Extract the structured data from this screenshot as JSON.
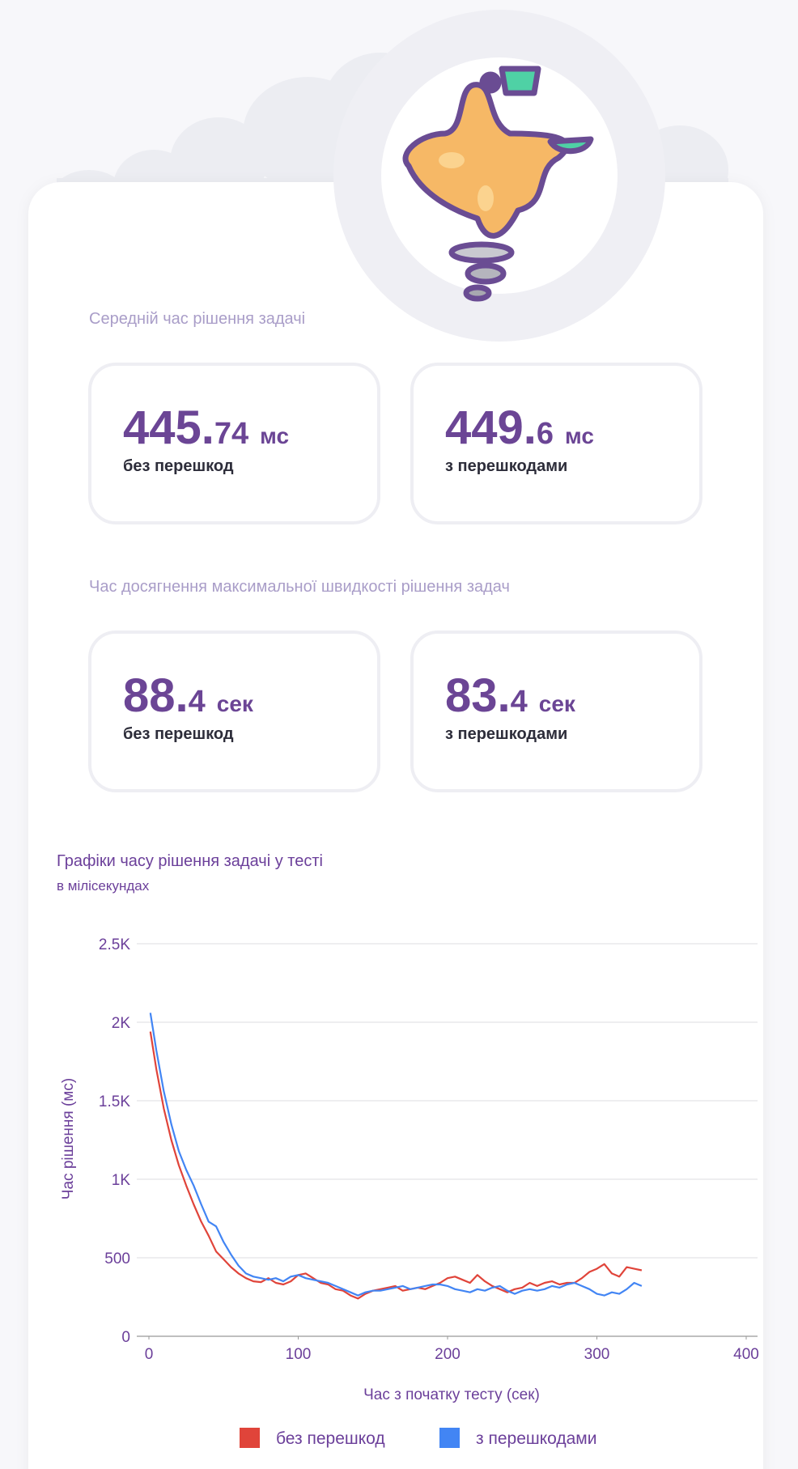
{
  "stats": [
    {
      "heading": "Середній час рішення задачі",
      "cards": [
        {
          "whole": "445.",
          "fraction": "74",
          "unit": "мс",
          "label": "без перешкод"
        },
        {
          "whole": "449.",
          "fraction": "6",
          "unit": "мс",
          "label": "з перешкодами"
        }
      ]
    },
    {
      "heading": "Час досягнення максимальної швидкості рішення задач",
      "cards": [
        {
          "whole": "88.",
          "fraction": "4",
          "unit": "сек",
          "label": "без перешкод"
        },
        {
          "whole": "83.",
          "fraction": "4",
          "unit": "сек",
          "label": "з перешкодами"
        }
      ]
    }
  ],
  "chart_data": {
    "type": "line",
    "title": "Графіки часу рішення задачі у тесті",
    "subtitle": "в мілісекундах",
    "x_label": "Час з початку тесту (сек)",
    "y_label": "Час рішення (мс)",
    "x": [
      1,
      5,
      10,
      15,
      20,
      25,
      30,
      35,
      40,
      45,
      50,
      55,
      60,
      65,
      70,
      75,
      80,
      85,
      90,
      95,
      100,
      105,
      110,
      115,
      120,
      125,
      130,
      135,
      140,
      145,
      150,
      155,
      160,
      165,
      170,
      175,
      180,
      185,
      190,
      195,
      200,
      205,
      210,
      215,
      220,
      225,
      230,
      235,
      240,
      245,
      250,
      255,
      260,
      265,
      270,
      275,
      280,
      285,
      290,
      295,
      300,
      305,
      310,
      315,
      320,
      325,
      330
    ],
    "series": [
      {
        "name": "без перешкод",
        "color": "#e0443a",
        "values": [
          1940,
          1700,
          1450,
          1250,
          1090,
          960,
          840,
          730,
          640,
          540,
          490,
          440,
          400,
          370,
          350,
          345,
          370,
          340,
          330,
          350,
          390,
          400,
          370,
          340,
          330,
          300,
          290,
          260,
          240,
          270,
          290,
          300,
          310,
          320,
          290,
          300,
          310,
          300,
          320,
          340,
          370,
          380,
          360,
          340,
          390,
          350,
          320,
          300,
          280,
          300,
          310,
          340,
          320,
          340,
          350,
          330,
          340,
          340,
          370,
          410,
          430,
          460,
          400,
          380,
          440,
          430,
          420
        ]
      },
      {
        "name": "з перешкодами",
        "color": "#4285f4",
        "values": [
          2060,
          1820,
          1560,
          1350,
          1180,
          1060,
          960,
          840,
          730,
          700,
          600,
          520,
          450,
          400,
          380,
          370,
          360,
          370,
          350,
          380,
          390,
          370,
          360,
          350,
          340,
          320,
          300,
          280,
          260,
          280,
          290,
          290,
          300,
          310,
          320,
          300,
          310,
          320,
          330,
          330,
          320,
          300,
          290,
          280,
          300,
          290,
          310,
          320,
          290,
          270,
          290,
          300,
          290,
          300,
          320,
          310,
          330,
          340,
          320,
          300,
          270,
          260,
          280,
          270,
          300,
          340,
          320
        ]
      }
    ],
    "xlim": [
      0,
      400
    ],
    "xticks": [
      0,
      100,
      200,
      300,
      400
    ],
    "ylim": [
      0,
      2500
    ],
    "yticks": [
      0,
      500,
      {
        "value": 1000,
        "label": "1K"
      },
      {
        "value": 1500,
        "label": "1.5K"
      },
      {
        "value": 2000,
        "label": "2K"
      },
      {
        "value": 2500,
        "label": "2.5K"
      }
    ],
    "grid": true,
    "legend": "bottom"
  }
}
